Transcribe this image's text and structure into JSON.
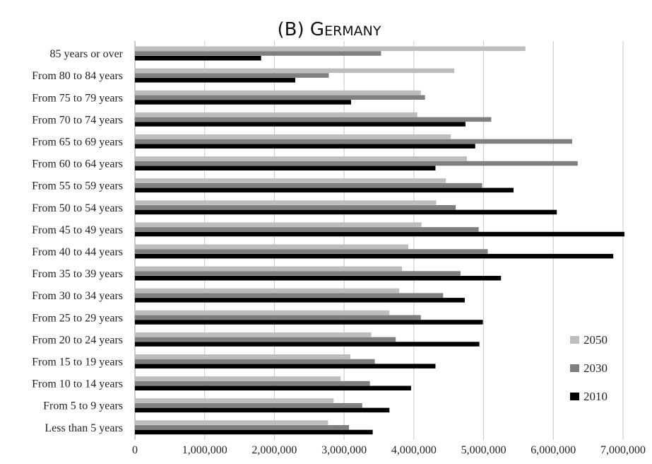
{
  "chart_data": {
    "type": "bar",
    "orientation": "horizontal",
    "title": "(B) Germany",
    "categories": [
      "85 years or over",
      "From 80 to 84 years",
      "From 75 to 79 years",
      "From 70 to 74 years",
      "From 65 to 69 years",
      "From 60 to 64 years",
      "From 55 to 59 years",
      "From 50 to 54 years",
      "From 45 to 49 years",
      "From 40 to 44 years",
      "From 35 to 39 years",
      "From 30 to 34 years",
      "From 25 to 29 years",
      "From 20 to 24 years",
      "From 15 to 19 years",
      "From 10 to 14 years",
      "From 5 to 9 years",
      "Less than 5 years"
    ],
    "series": [
      {
        "name": "2050",
        "color": "#bdbdbd",
        "values": [
          5600000,
          4580000,
          4100000,
          4050000,
          4530000,
          4760000,
          4460000,
          4320000,
          4110000,
          3920000,
          3830000,
          3790000,
          3650000,
          3390000,
          3090000,
          2950000,
          2850000,
          2770000
        ]
      },
      {
        "name": "2030",
        "color": "#7f7f7f",
        "values": [
          3530000,
          2780000,
          4160000,
          5110000,
          6270000,
          6350000,
          4980000,
          4600000,
          4930000,
          5060000,
          4670000,
          4420000,
          4100000,
          3740000,
          3440000,
          3370000,
          3260000,
          3070000
        ]
      },
      {
        "name": "2010",
        "color": "#000000",
        "values": [
          1810000,
          2300000,
          3100000,
          4740000,
          4880000,
          4310000,
          5430000,
          6050000,
          7020000,
          6860000,
          5250000,
          4730000,
          4990000,
          4940000,
          4310000,
          3960000,
          3650000,
          3410000
        ]
      }
    ],
    "xlim": [
      0,
      7000000
    ],
    "xticks": [
      "0",
      "1,000,000",
      "2,000,000",
      "3,000,000",
      "4,000,000",
      "5,000,000",
      "6,000,000",
      "7,000,000"
    ],
    "grid": "vertical",
    "legend_position": "bottom-right"
  }
}
